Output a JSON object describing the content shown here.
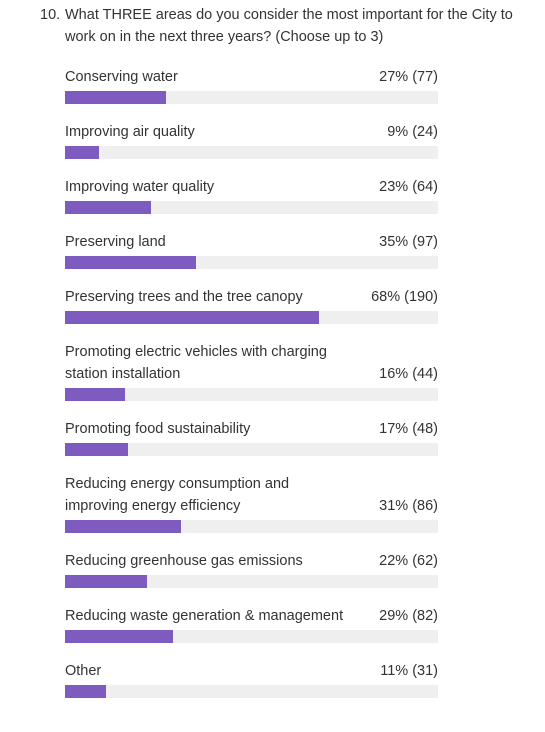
{
  "chart_data": {
    "type": "bar",
    "orientation": "horizontal",
    "question_number": "10.",
    "title": "What THREE areas do you consider the most important for the City to work on in the next three years? (Choose up to 3)",
    "categories": [
      "Conserving water",
      "Improving air quality",
      "Improving water quality",
      "Preserving land",
      "Preserving trees and the tree canopy",
      "Promoting electric vehicles with charging station installation",
      "Promoting food sustainability",
      "Reducing energy consumption and improving energy efficiency",
      "Reducing greenhouse gas emissions",
      "Reducing waste generation & management",
      "Other"
    ],
    "values": [
      27,
      9,
      23,
      35,
      68,
      16,
      17,
      31,
      22,
      29,
      11
    ],
    "value_labels": [
      "27% (77)",
      "9% (24)",
      "23% (64)",
      "35% (97)",
      "68% (190)",
      "16% (44)",
      "17% (48)",
      "31% (86)",
      "22% (62)",
      "29% (82)",
      "11% (31)"
    ],
    "xlim": [
      0,
      100
    ],
    "color": "#7e5bbf",
    "track_color": "#efefef"
  }
}
